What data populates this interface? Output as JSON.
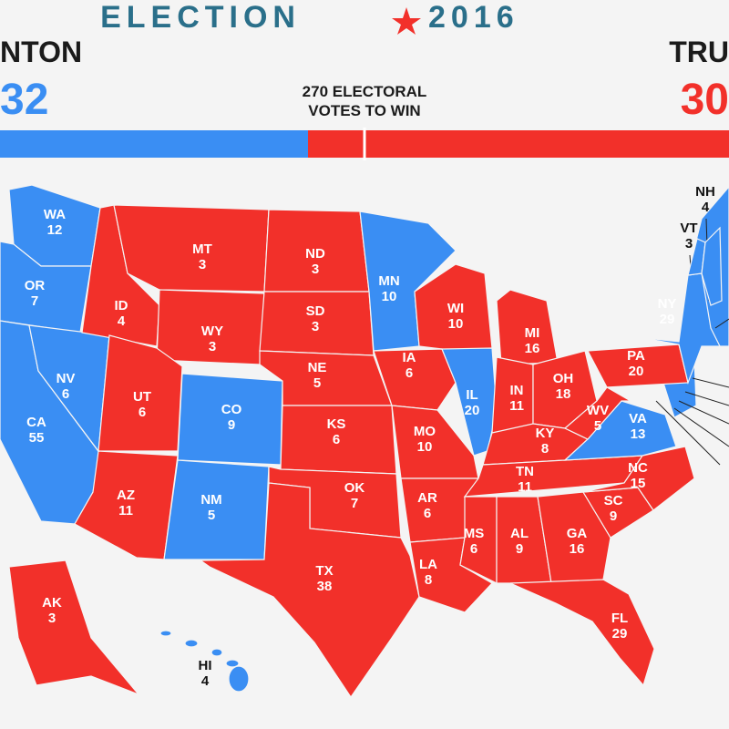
{
  "header": {
    "title_left": "ELECTION",
    "title_right": "2016",
    "left_name": "NTON",
    "left_votes": "32",
    "right_name": "TRU",
    "right_votes": "30",
    "threshold": "270 ELECTORAL\nVOTES TO WIN",
    "left_color": "#3a8ef3",
    "right_color": "#f2302a"
  },
  "states": [
    {
      "abbr": "WA",
      "votes": 12,
      "color": "#3a8ef3"
    },
    {
      "abbr": "OR",
      "votes": 7,
      "color": "#3a8ef3"
    },
    {
      "abbr": "CA",
      "votes": 55,
      "color": "#3a8ef3"
    },
    {
      "abbr": "NV",
      "votes": 6,
      "color": "#3a8ef3"
    },
    {
      "abbr": "ID",
      "votes": 4,
      "color": "#f2302a"
    },
    {
      "abbr": "MT",
      "votes": 3,
      "color": "#f2302a"
    },
    {
      "abbr": "WY",
      "votes": 3,
      "color": "#f2302a"
    },
    {
      "abbr": "UT",
      "votes": 6,
      "color": "#f2302a"
    },
    {
      "abbr": "CO",
      "votes": 9,
      "color": "#3a8ef3"
    },
    {
      "abbr": "AZ",
      "votes": 11,
      "color": "#f2302a"
    },
    {
      "abbr": "NM",
      "votes": 5,
      "color": "#3a8ef3"
    },
    {
      "abbr": "ND",
      "votes": 3,
      "color": "#f2302a"
    },
    {
      "abbr": "SD",
      "votes": 3,
      "color": "#f2302a"
    },
    {
      "abbr": "NE",
      "votes": 5,
      "color": "#f2302a"
    },
    {
      "abbr": "KS",
      "votes": 6,
      "color": "#f2302a"
    },
    {
      "abbr": "OK",
      "votes": 7,
      "color": "#f2302a"
    },
    {
      "abbr": "TX",
      "votes": 38,
      "color": "#f2302a"
    },
    {
      "abbr": "MN",
      "votes": 10,
      "color": "#3a8ef3"
    },
    {
      "abbr": "IA",
      "votes": 6,
      "color": "#f2302a"
    },
    {
      "abbr": "MO",
      "votes": 10,
      "color": "#f2302a"
    },
    {
      "abbr": "AR",
      "votes": 6,
      "color": "#f2302a"
    },
    {
      "abbr": "LA",
      "votes": 8,
      "color": "#f2302a"
    },
    {
      "abbr": "WI",
      "votes": 10,
      "color": "#f2302a"
    },
    {
      "abbr": "IL",
      "votes": 20,
      "color": "#3a8ef3"
    },
    {
      "abbr": "MI",
      "votes": 16,
      "color": "#f2302a"
    },
    {
      "abbr": "IN",
      "votes": 11,
      "color": "#f2302a"
    },
    {
      "abbr": "OH",
      "votes": 18,
      "color": "#f2302a"
    },
    {
      "abbr": "KY",
      "votes": 8,
      "color": "#f2302a"
    },
    {
      "abbr": "TN",
      "votes": 11,
      "color": "#f2302a"
    },
    {
      "abbr": "MS",
      "votes": 6,
      "color": "#f2302a"
    },
    {
      "abbr": "AL",
      "votes": 9,
      "color": "#f2302a"
    },
    {
      "abbr": "GA",
      "votes": 16,
      "color": "#f2302a"
    },
    {
      "abbr": "FL",
      "votes": 29,
      "color": "#f2302a"
    },
    {
      "abbr": "SC",
      "votes": 9,
      "color": "#f2302a"
    },
    {
      "abbr": "NC",
      "votes": 15,
      "color": "#f2302a"
    },
    {
      "abbr": "VA",
      "votes": 13,
      "color": "#3a8ef3"
    },
    {
      "abbr": "WV",
      "votes": 5,
      "color": "#f2302a"
    },
    {
      "abbr": "PA",
      "votes": 20,
      "color": "#f2302a"
    },
    {
      "abbr": "NY",
      "votes": 29,
      "color": "#3a8ef3"
    },
    {
      "abbr": "VT",
      "votes": 3,
      "color": "#3a8ef3"
    },
    {
      "abbr": "NH",
      "votes": 4,
      "color": "#3a8ef3"
    },
    {
      "abbr": "AK",
      "votes": 3,
      "color": "#f2302a"
    },
    {
      "abbr": "HI",
      "votes": 4,
      "color": "#3a8ef3"
    }
  ]
}
